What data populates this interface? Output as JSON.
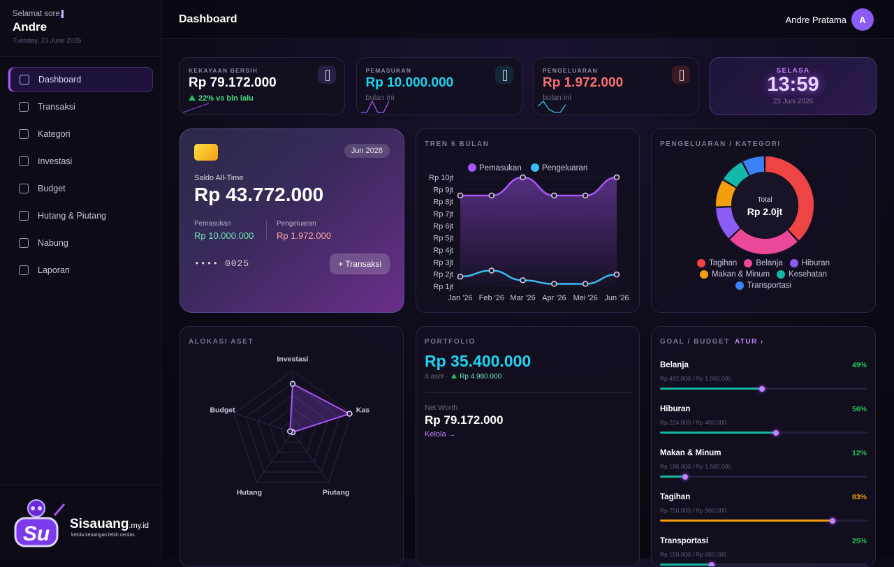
{
  "sidebar": {
    "greeting": "Selamat sore,",
    "user": "Andre",
    "date": "Tuesday, 23 June 2026",
    "nav": [
      "Dashboard",
      "Transaksi",
      "Kategori",
      "Investasi",
      "Budget",
      "Hutang & Piutang",
      "Nabung",
      "Laporan"
    ],
    "active": 0,
    "brand": "Sisauang",
    "brand_suffix": ".my.id",
    "tagline": "kelola keuangan lebih cerdas"
  },
  "header": {
    "title": "Dashboard",
    "user": "Andre Pratama",
    "avatar": "A"
  },
  "stats": [
    {
      "label": "KEKAYAAN BERSIH",
      "value": "Rp 79.172.000",
      "note": "22% vs bln lalu"
    },
    {
      "label": "PEMASUKAN",
      "value": "Rp 10.000.000",
      "note": "bulan ini"
    },
    {
      "label": "PENGELUARAN",
      "value": "Rp 1.972.000",
      "note": "bulan ini"
    }
  ],
  "clock": {
    "day": "SELASA",
    "time": "13:59",
    "date": "23 Juni 2026"
  },
  "balance_card": {
    "badge": "Jun 2026",
    "label": "Saldo All-Time",
    "amount": "Rp 43.772.000",
    "income_label": "Pemasukan",
    "income": "Rp 10.000.000",
    "expense_label": "Pengeluaran",
    "expense": "Rp 1.972.000",
    "card_number": "•••• 0025",
    "button": "+ Transaksi"
  },
  "portfolio": {
    "title": "PORTFOLIO",
    "value": "Rp 35.400.000",
    "assets": "4 aset ·",
    "gain": "Rp 4.980.000",
    "net_worth_label": "Net Worth",
    "net_worth": "Rp 79.172.000",
    "link": "Kelola →"
  },
  "goals": {
    "title": "GOAL / BUDGET",
    "action": "ATUR ›",
    "items": [
      {
        "name": "Belanja",
        "amount": "Rp 492.000 / Rp 1.000.000",
        "value": 49,
        "value_label": "49%",
        "color": "#14b8a6",
        "label_color": "#22c55e"
      },
      {
        "name": "Hiburan",
        "amount": "Rp 224.000 / Rp 400.000",
        "value": 56,
        "value_label": "56%",
        "color": "#14b8a6",
        "label_color": "#22c55e"
      },
      {
        "name": "Makan & Minum",
        "amount": "Rp 186.000 / Rp 1.500.000",
        "value": 12,
        "value_label": "12%",
        "color": "#14b8a6",
        "label_color": "#22c55e"
      },
      {
        "name": "Tagihan",
        "amount": "Rp 750.000 / Rp 900.000",
        "value": 83,
        "value_label": "83%",
        "color": "#f59e0b",
        "label_color": "#f59e0b"
      },
      {
        "name": "Transportasi",
        "amount": "Rp 150.000 / Rp 600.000",
        "value": 25,
        "value_label": "25%",
        "color": "#14b8a6",
        "label_color": "#22c55e"
      }
    ]
  },
  "chart_data": [
    {
      "type": "line",
      "title": "TREN 6 BULAN",
      "categories": [
        "Jan '26",
        "Feb '26",
        "Mar '26",
        "Apr '26",
        "Mei '26",
        "Jun '26"
      ],
      "series": [
        {
          "name": "Pemasukan",
          "color": "#a855f7",
          "values": [
            8.5,
            8.5,
            10,
            8.5,
            8.5,
            10
          ]
        },
        {
          "name": "Pengeluaran",
          "color": "#38bdf8",
          "values": [
            1.8,
            2.3,
            1.5,
            1.2,
            1.2,
            1.972
          ]
        }
      ],
      "ylim": [
        1,
        10
      ],
      "yticks": [
        {
          "value": 1,
          "label": "Rp 1jt"
        },
        {
          "value": 2,
          "label": "Rp 2jt"
        },
        {
          "value": 3,
          "label": "Rp 3jt"
        },
        {
          "value": 4,
          "label": "Rp 4jt"
        },
        {
          "value": 5,
          "label": "Rp 5jt"
        },
        {
          "value": 6,
          "label": "Rp 6jt"
        },
        {
          "value": 7,
          "label": "Rp 7jt"
        },
        {
          "value": 8,
          "label": "Rp 8jt"
        },
        {
          "value": 9,
          "label": "Rp 9jt"
        },
        {
          "value": 10,
          "label": "Rp 10jt"
        }
      ],
      "grid": true
    },
    {
      "type": "pie",
      "donut": true,
      "title": "PENGELUARAN / KATEGORI",
      "center_label": "Total",
      "center_value": "Rp 2.0jt",
      "categories": [
        "Tagihan",
        "Belanja",
        "Hiburan",
        "Makan & Minum",
        "Kesehatan",
        "Transportasi"
      ],
      "values": [
        750000,
        492000,
        224000,
        186000,
        170000,
        150000
      ],
      "colors": [
        "#ef4444",
        "#ec4899",
        "#8b5cf6",
        "#f59e0b",
        "#14b8a6",
        "#3b82f6"
      ]
    },
    {
      "type": "radar",
      "title": "ALOKASI ASET",
      "categories": [
        "Investasi",
        "Kas",
        "Piutang",
        "Hutang",
        "Budget"
      ],
      "values": [
        35.4,
        43.772,
        0,
        0,
        2
      ],
      "rlim": [
        0,
        45
      ],
      "color": "#a855f7"
    }
  ]
}
